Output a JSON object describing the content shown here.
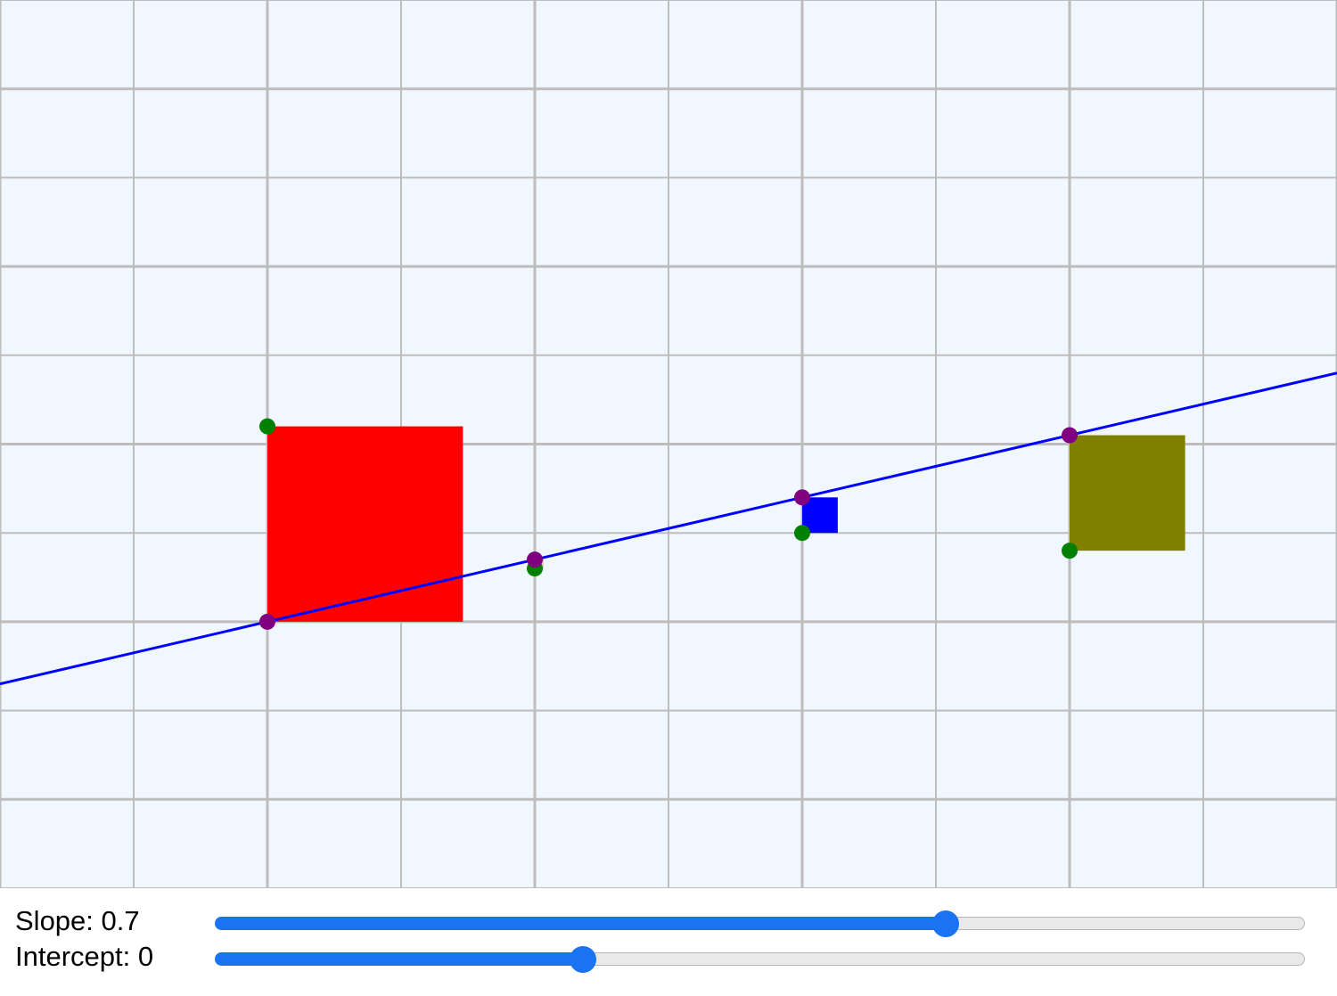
{
  "model": {
    "slope": 0.7,
    "intercept": 0
  },
  "sliders": {
    "slope": {
      "label": "Slope: 0.7",
      "min": -2,
      "max": 2,
      "value": 0.7
    },
    "intercept": {
      "label": "Intercept: 0",
      "min": -5,
      "max": 10,
      "value": 0
    }
  },
  "colors": {
    "background": "#f0f7ff",
    "grid": "#bdbdbd",
    "line": "#0000ff",
    "prediction_point": "#800080",
    "data_point": "#008000"
  },
  "chart_data": {
    "type": "scatter",
    "title": "",
    "xlabel": "",
    "ylabel": "",
    "xlim": [
      -1,
      4
    ],
    "ylim": [
      -3,
      7
    ],
    "grid": true,
    "line": {
      "slope": 0.7,
      "intercept": 0
    },
    "points": [
      {
        "x": 0,
        "y": 2.2,
        "predicted": 0,
        "residual_square_color": "#ff0000"
      },
      {
        "x": 1,
        "y": 0.6,
        "predicted": 0.7,
        "residual_square_color": "#ffc0cb"
      },
      {
        "x": 2,
        "y": 1.0,
        "predicted": 1.4,
        "residual_square_color": "#0000ff"
      },
      {
        "x": 3,
        "y": 0.8,
        "predicted": 2.1,
        "residual_square_color": "#808000"
      }
    ]
  }
}
